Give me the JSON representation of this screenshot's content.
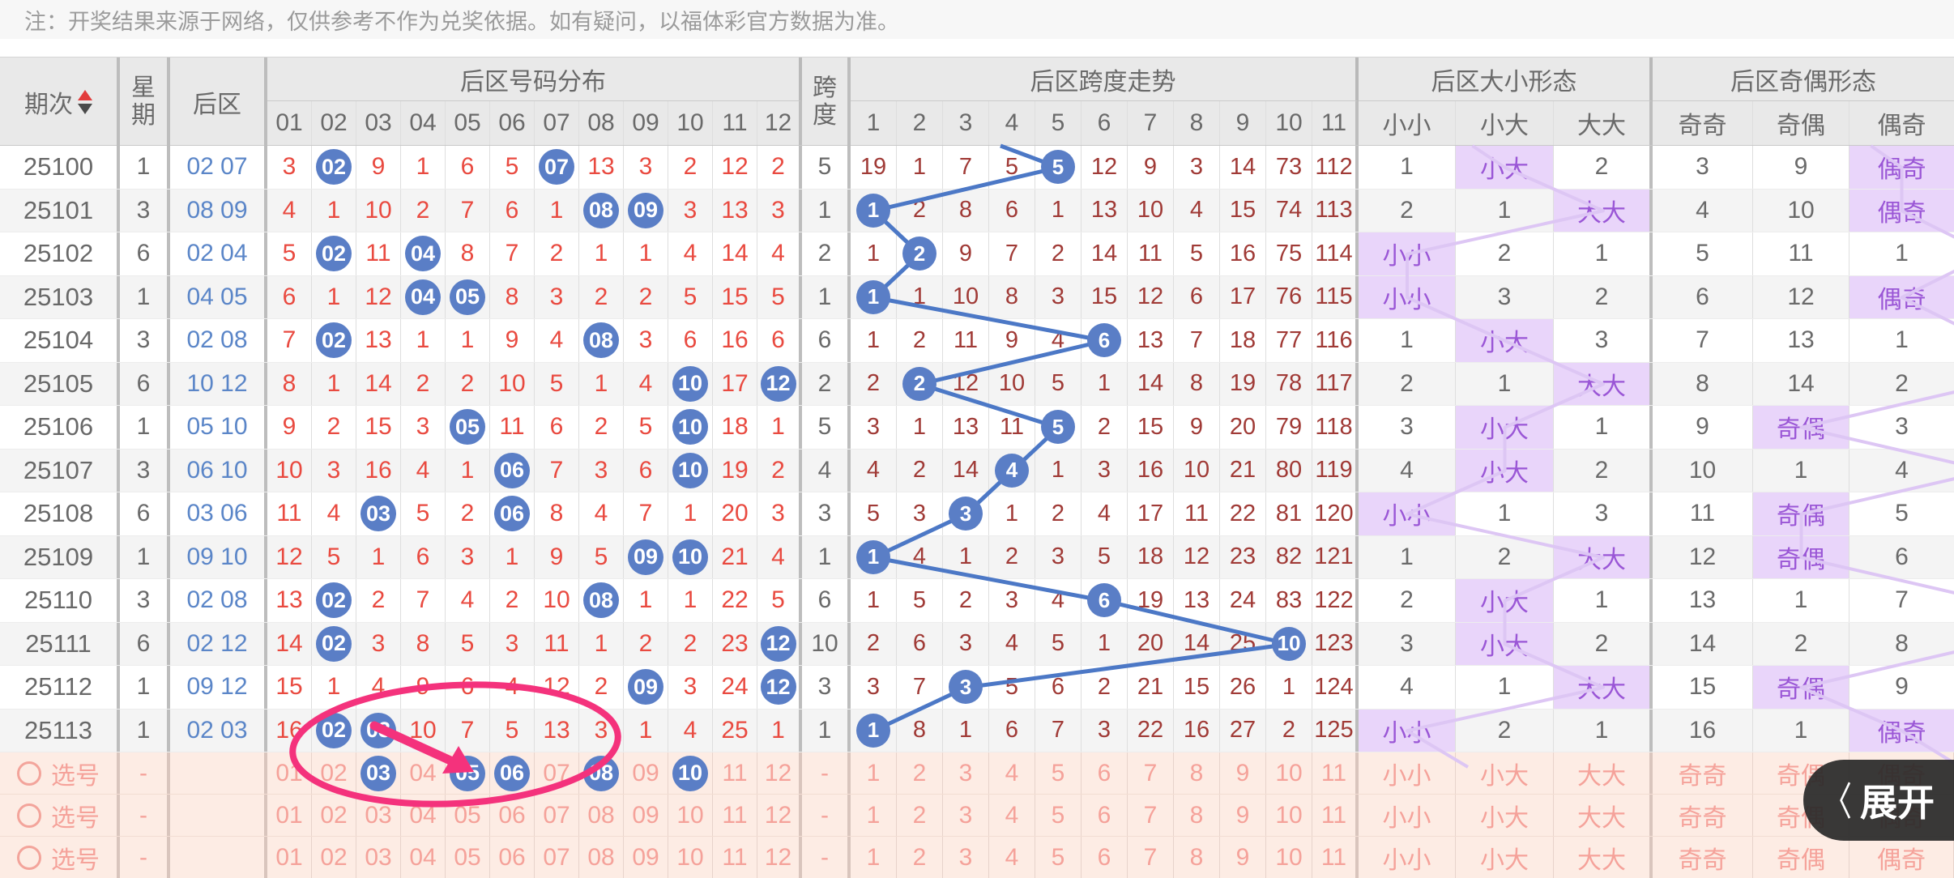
{
  "note": "注：开奖结果来源于网络，仅供参考不作为兑奖依据。如有疑问，以福体彩官方数据为准。",
  "header": {
    "period": "期次",
    "week": "星期",
    "rear": "后区",
    "dist_group": "后区号码分布",
    "span": "跨度",
    "trend_group": "后区跨度走势",
    "size_group": "后区大小形态",
    "parity_group": "后区奇偶形态",
    "dist_cols": [
      "01",
      "02",
      "03",
      "04",
      "05",
      "06",
      "07",
      "08",
      "09",
      "10",
      "11",
      "12"
    ],
    "trend_cols": [
      "1",
      "2",
      "3",
      "4",
      "5",
      "6",
      "7",
      "8",
      "9",
      "10",
      "11"
    ],
    "size_cols": [
      "小小",
      "小大",
      "大大"
    ],
    "parity_cols": [
      "奇奇",
      "奇偶",
      "偶奇"
    ]
  },
  "rows": [
    {
      "period": "25100",
      "week": "1",
      "rear": "02 07",
      "dist": [
        "3",
        "02",
        "9",
        "1",
        "6",
        "5",
        "07",
        "13",
        "3",
        "2",
        "12",
        "2"
      ],
      "dist_circled": [
        1,
        6
      ],
      "span": "5",
      "trend": [
        "19",
        "1",
        "7",
        "5",
        "5",
        "12",
        "9",
        "3",
        "14",
        "73",
        "112"
      ],
      "trend_circled": 4,
      "size": [
        "1",
        "小大",
        "2"
      ],
      "size_hl": 1,
      "parity": [
        "3",
        "9",
        "偶奇"
      ],
      "parity_hl": 2
    },
    {
      "period": "25101",
      "week": "3",
      "rear": "08 09",
      "dist": [
        "4",
        "1",
        "10",
        "2",
        "7",
        "6",
        "1",
        "08",
        "09",
        "3",
        "13",
        "3"
      ],
      "dist_circled": [
        7,
        8
      ],
      "span": "1",
      "trend": [
        "1",
        "2",
        "8",
        "6",
        "1",
        "13",
        "10",
        "4",
        "15",
        "74",
        "113"
      ],
      "trend_circled": 0,
      "size": [
        "2",
        "1",
        "大大"
      ],
      "size_hl": 2,
      "parity": [
        "4",
        "10",
        "偶奇"
      ],
      "parity_hl": 2
    },
    {
      "period": "25102",
      "week": "6",
      "rear": "02 04",
      "dist": [
        "5",
        "02",
        "11",
        "04",
        "8",
        "7",
        "2",
        "1",
        "1",
        "4",
        "14",
        "4"
      ],
      "dist_circled": [
        1,
        3
      ],
      "span": "2",
      "trend": [
        "1",
        "2",
        "9",
        "7",
        "2",
        "14",
        "11",
        "5",
        "16",
        "75",
        "114"
      ],
      "trend_circled": 1,
      "size": [
        "小小",
        "2",
        "1"
      ],
      "size_hl": 0,
      "parity": [
        "5",
        "11",
        "1"
      ],
      "parity_hl": -1
    },
    {
      "period": "25103",
      "week": "1",
      "rear": "04 05",
      "dist": [
        "6",
        "1",
        "12",
        "04",
        "05",
        "8",
        "3",
        "2",
        "2",
        "5",
        "15",
        "5"
      ],
      "dist_circled": [
        3,
        4
      ],
      "span": "1",
      "trend": [
        "1",
        "1",
        "10",
        "8",
        "3",
        "15",
        "12",
        "6",
        "17",
        "76",
        "115"
      ],
      "trend_circled": 0,
      "size": [
        "小小",
        "3",
        "2"
      ],
      "size_hl": 0,
      "parity": [
        "6",
        "12",
        "偶奇"
      ],
      "parity_hl": 2
    },
    {
      "period": "25104",
      "week": "3",
      "rear": "02 08",
      "dist": [
        "7",
        "02",
        "13",
        "1",
        "1",
        "9",
        "4",
        "08",
        "3",
        "6",
        "16",
        "6"
      ],
      "dist_circled": [
        1,
        7
      ],
      "span": "6",
      "trend": [
        "1",
        "2",
        "11",
        "9",
        "4",
        "6",
        "13",
        "7",
        "18",
        "77",
        "116"
      ],
      "trend_circled": 5,
      "size": [
        "1",
        "小大",
        "3"
      ],
      "size_hl": 1,
      "parity": [
        "7",
        "13",
        "1"
      ],
      "parity_hl": -1
    },
    {
      "period": "25105",
      "week": "6",
      "rear": "10 12",
      "dist": [
        "8",
        "1",
        "14",
        "2",
        "2",
        "10",
        "5",
        "1",
        "4",
        "10",
        "17",
        "12"
      ],
      "dist_circled": [
        9,
        11
      ],
      "span": "2",
      "trend": [
        "2",
        "2",
        "12",
        "10",
        "5",
        "1",
        "14",
        "8",
        "19",
        "78",
        "117"
      ],
      "trend_circled": 1,
      "size": [
        "2",
        "1",
        "大大"
      ],
      "size_hl": 2,
      "parity": [
        "8",
        "14",
        "2"
      ],
      "parity_hl": -1
    },
    {
      "period": "25106",
      "week": "1",
      "rear": "05 10",
      "dist": [
        "9",
        "2",
        "15",
        "3",
        "05",
        "11",
        "6",
        "2",
        "5",
        "10",
        "18",
        "1"
      ],
      "dist_circled": [
        4,
        9
      ],
      "span": "5",
      "trend": [
        "3",
        "1",
        "13",
        "11",
        "5",
        "2",
        "15",
        "9",
        "20",
        "79",
        "118"
      ],
      "trend_circled": 4,
      "size": [
        "3",
        "小大",
        "1"
      ],
      "size_hl": 1,
      "parity": [
        "9",
        "奇偶",
        "3"
      ],
      "parity_hl": 1
    },
    {
      "period": "25107",
      "week": "3",
      "rear": "06 10",
      "dist": [
        "10",
        "3",
        "16",
        "4",
        "1",
        "06",
        "7",
        "3",
        "6",
        "10",
        "19",
        "2"
      ],
      "dist_circled": [
        5,
        9
      ],
      "span": "4",
      "trend": [
        "4",
        "2",
        "14",
        "4",
        "1",
        "3",
        "16",
        "10",
        "21",
        "80",
        "119"
      ],
      "trend_circled": 3,
      "size": [
        "4",
        "小大",
        "2"
      ],
      "size_hl": 1,
      "parity": [
        "10",
        "1",
        "4"
      ],
      "parity_hl": -1
    },
    {
      "period": "25108",
      "week": "6",
      "rear": "03 06",
      "dist": [
        "11",
        "4",
        "03",
        "5",
        "2",
        "06",
        "8",
        "4",
        "7",
        "1",
        "20",
        "3"
      ],
      "dist_circled": [
        2,
        5
      ],
      "span": "3",
      "trend": [
        "5",
        "3",
        "3",
        "1",
        "2",
        "4",
        "17",
        "11",
        "22",
        "81",
        "120"
      ],
      "trend_circled": 2,
      "size": [
        "小小",
        "1",
        "3"
      ],
      "size_hl": 0,
      "parity": [
        "11",
        "奇偶",
        "5"
      ],
      "parity_hl": 1
    },
    {
      "period": "25109",
      "week": "1",
      "rear": "09 10",
      "dist": [
        "12",
        "5",
        "1",
        "6",
        "3",
        "1",
        "9",
        "5",
        "09",
        "10",
        "21",
        "4"
      ],
      "dist_circled": [
        8,
        9
      ],
      "span": "1",
      "trend": [
        "1",
        "4",
        "1",
        "2",
        "3",
        "5",
        "18",
        "12",
        "23",
        "82",
        "121"
      ],
      "trend_circled": 0,
      "size": [
        "1",
        "2",
        "大大"
      ],
      "size_hl": 2,
      "parity": [
        "12",
        "奇偶",
        "6"
      ],
      "parity_hl": 1
    },
    {
      "period": "25110",
      "week": "3",
      "rear": "02 08",
      "dist": [
        "13",
        "02",
        "2",
        "7",
        "4",
        "2",
        "10",
        "08",
        "1",
        "1",
        "22",
        "5"
      ],
      "dist_circled": [
        1,
        7
      ],
      "span": "6",
      "trend": [
        "1",
        "5",
        "2",
        "3",
        "4",
        "6",
        "19",
        "13",
        "24",
        "83",
        "122"
      ],
      "trend_circled": 5,
      "size": [
        "2",
        "小大",
        "1"
      ],
      "size_hl": 1,
      "parity": [
        "13",
        "1",
        "7"
      ],
      "parity_hl": -1
    },
    {
      "period": "25111",
      "week": "6",
      "rear": "02 12",
      "dist": [
        "14",
        "02",
        "3",
        "8",
        "5",
        "3",
        "11",
        "1",
        "2",
        "2",
        "23",
        "12"
      ],
      "dist_circled": [
        1,
        11
      ],
      "span": "10",
      "trend": [
        "2",
        "6",
        "3",
        "4",
        "5",
        "1",
        "20",
        "14",
        "25",
        "10",
        "123"
      ],
      "trend_circled": 9,
      "size": [
        "3",
        "小大",
        "2"
      ],
      "size_hl": 1,
      "parity": [
        "14",
        "2",
        "8"
      ],
      "parity_hl": -1
    },
    {
      "period": "25112",
      "week": "1",
      "rear": "09 12",
      "dist": [
        "15",
        "1",
        "4",
        "9",
        "6",
        "4",
        "12",
        "2",
        "09",
        "3",
        "24",
        "12"
      ],
      "dist_circled": [
        8,
        11
      ],
      "span": "3",
      "trend": [
        "3",
        "7",
        "3",
        "5",
        "6",
        "2",
        "21",
        "15",
        "26",
        "1",
        "124"
      ],
      "trend_circled": 2,
      "size": [
        "4",
        "1",
        "大大"
      ],
      "size_hl": 2,
      "parity": [
        "15",
        "奇偶",
        "9"
      ],
      "parity_hl": 1
    },
    {
      "period": "25113",
      "week": "1",
      "rear": "02 03",
      "dist": [
        "16",
        "02",
        "03",
        "10",
        "7",
        "5",
        "13",
        "3",
        "1",
        "4",
        "25",
        "1"
      ],
      "dist_circled": [
        1,
        2
      ],
      "span": "1",
      "trend": [
        "1",
        "8",
        "1",
        "6",
        "7",
        "3",
        "22",
        "16",
        "27",
        "2",
        "125"
      ],
      "trend_circled": 0,
      "size": [
        "小小",
        "2",
        "1"
      ],
      "size_hl": 0,
      "parity": [
        "16",
        "1",
        "偶奇"
      ],
      "parity_hl": 2
    }
  ],
  "picks": {
    "label": "选号",
    "week": "-",
    "span": "-",
    "dist": [
      "01",
      "02",
      "03",
      "04",
      "05",
      "06",
      "07",
      "08",
      "09",
      "10",
      "11",
      "12"
    ],
    "trend": [
      "1",
      "2",
      "3",
      "4",
      "5",
      "6",
      "7",
      "8",
      "9",
      "10",
      "11"
    ],
    "size": [
      "小小",
      "小大",
      "大大"
    ],
    "parity": [
      "奇奇",
      "奇偶",
      "偶奇"
    ],
    "rows": [
      {
        "selected": [
          2,
          4,
          5,
          7,
          9
        ]
      },
      {
        "selected": []
      },
      {
        "selected": []
      }
    ]
  },
  "expand_button": {
    "chevron": "〈",
    "label": "展开"
  },
  "colors": {
    "circle_blue": "#5a7ec6",
    "trend_line_blue": "#4c78c6",
    "dist_red": "#e94a40",
    "trend_maroon": "#a03a36",
    "rear_blue": "#5b86c8",
    "pattern_purple": "#9a56d6",
    "pattern_purple_bg": "#e9d5fa",
    "pattern_connector": "#ddc6f4",
    "pick_pink": "#f5a29a",
    "pick_bg": "#fdece4",
    "annotation_pink": "#f4327c",
    "expand_bg": "#282828"
  }
}
